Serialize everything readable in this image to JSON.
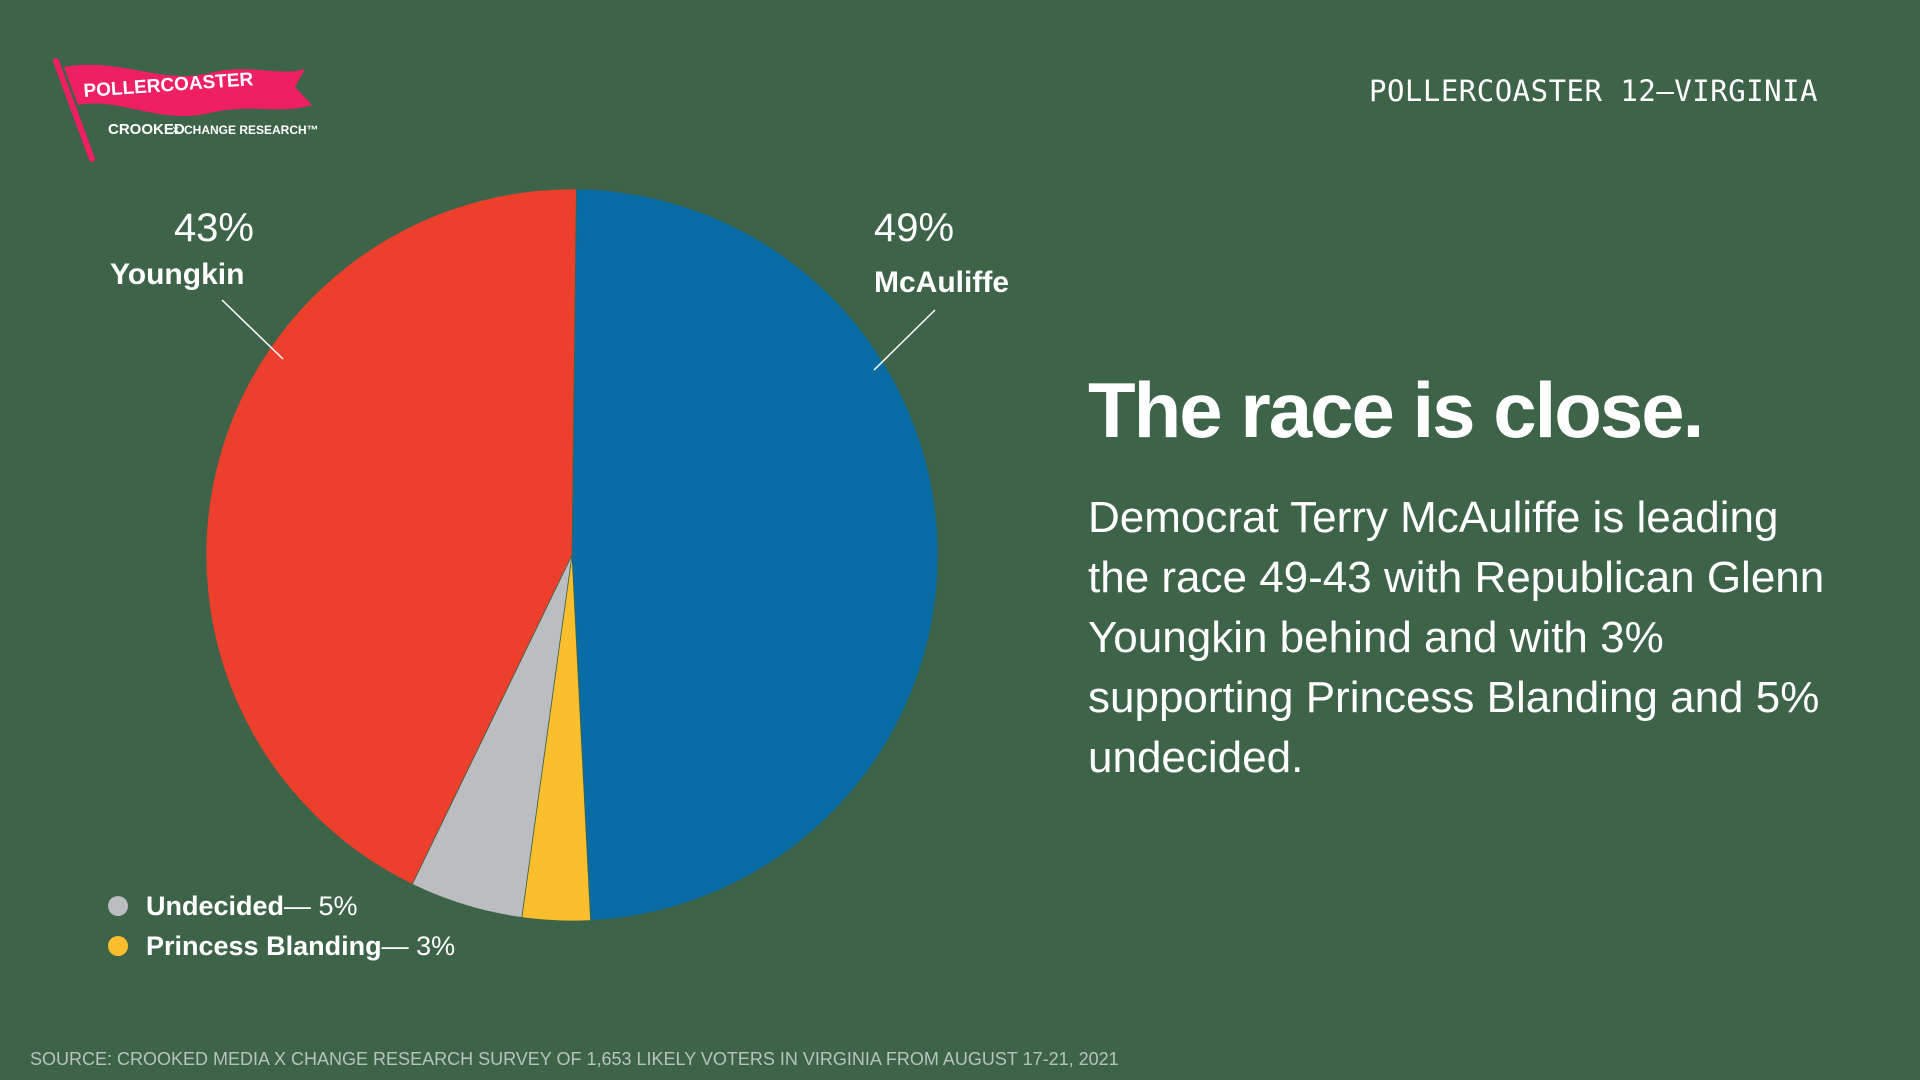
{
  "logo": {
    "flag_text": "POLLERCOASTER",
    "sub_left": "CROOKED",
    "sub_mid": "×",
    "sub_right": "CHANGE RESEARCH™"
  },
  "header": {
    "series_label": "POLLERCOASTER 12—VIRGINIA"
  },
  "headline": "The race is close.",
  "body": "Democrat Terry McAuliffe is leading the race 49-43 with Republican Glenn Youngkin behind and with 3% supporting Princess Blanding and 5% undecided.",
  "source": "SOURCE: CROOKED MEDIA X CHANGE RESEARCH SURVEY OF 1,653 LIKELY VOTERS IN VIRGINIA FROM AUGUST 17-21, 2021",
  "colors": {
    "background": "#3d6349",
    "mcauliffe": "#0a6ca5",
    "youngkin": "#ec402c",
    "undecided": "#bcbdc0",
    "blanding": "#fbbf2d",
    "flag": "#ee1f63"
  },
  "labels": {
    "mcauliffe_pct": "49%",
    "mcauliffe_name": "McAuliffe",
    "youngkin_pct": "43%",
    "youngkin_name": "Youngkin"
  },
  "legend": [
    {
      "name": "Undecided",
      "value": " — 5%",
      "color": "#bcbdc0"
    },
    {
      "name": "Princess Blanding",
      "value": " — 3%",
      "color": "#fbbf2d"
    }
  ],
  "chart_data": {
    "type": "pie",
    "categories": [
      "McAuliffe",
      "Princess Blanding",
      "Undecided",
      "Youngkin"
    ],
    "values": [
      49,
      3,
      5,
      43
    ],
    "unit": "%"
  }
}
